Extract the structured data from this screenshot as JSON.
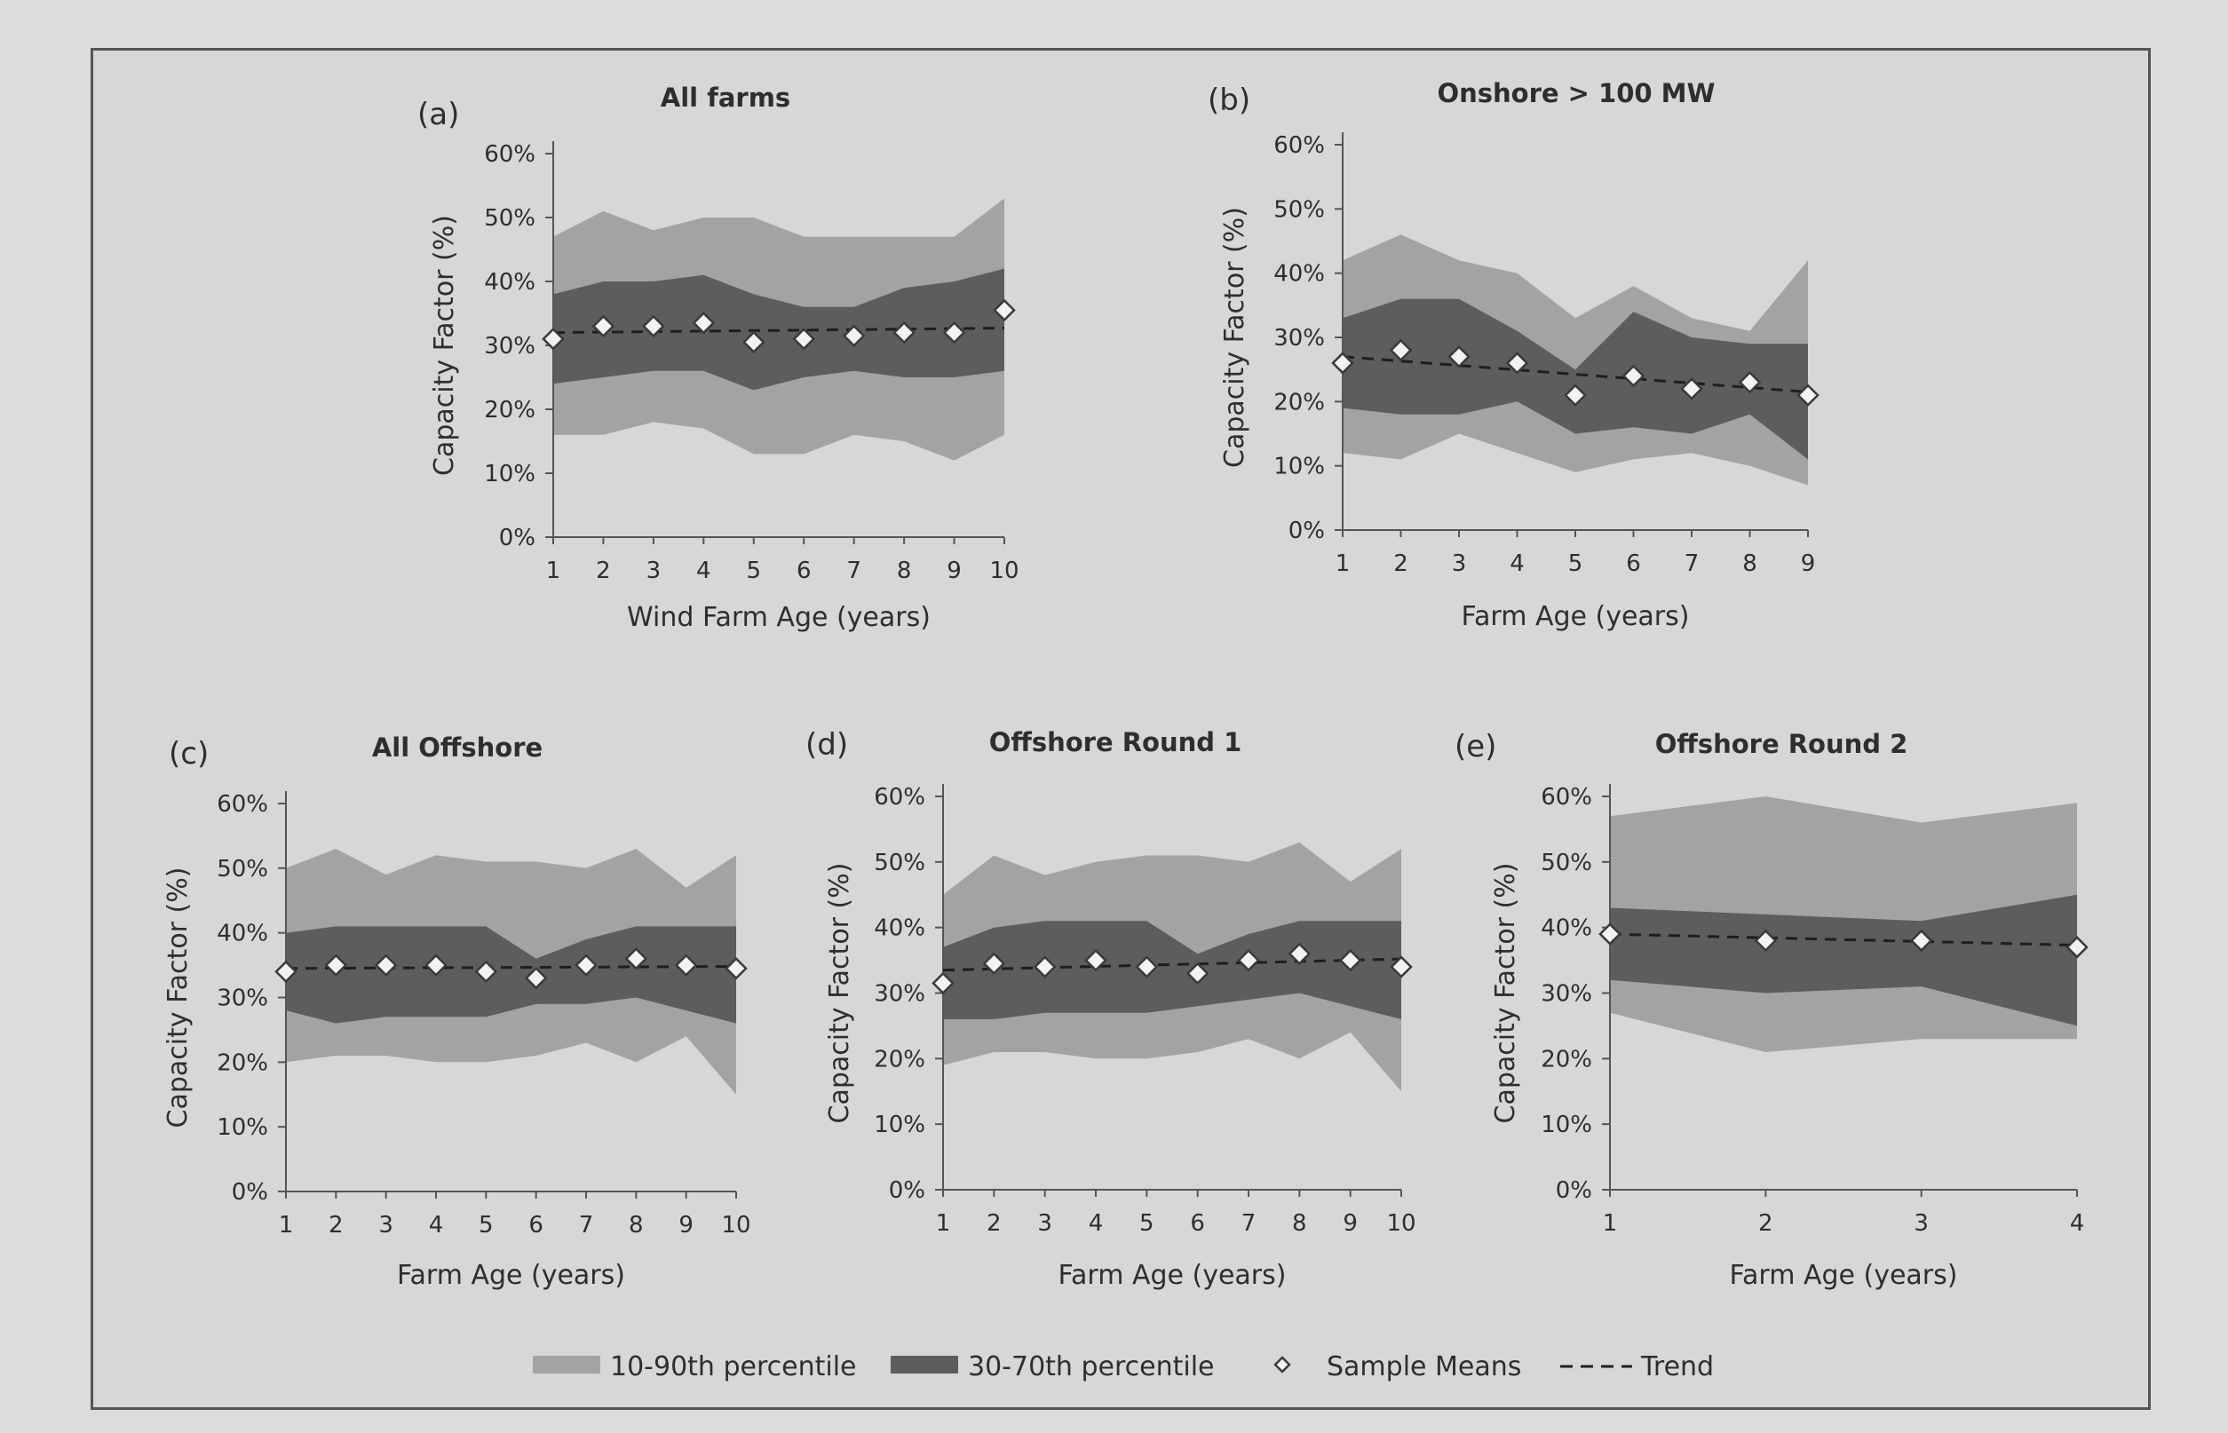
{
  "legend": {
    "outer": "10-90th percentile",
    "inner": "30-70th percentile",
    "means": "Sample Means",
    "trend": "Trend"
  },
  "colors": {
    "background": "#d7d7d5",
    "outer_band": "#a3a3a1",
    "inner_band": "#5d5d5b",
    "marker_fill": "#f2f2f2",
    "marker_stroke": "#3a3a3a",
    "trend": "#1e1e1e",
    "axis": "#555555"
  },
  "chart_data": [
    {
      "id": "a",
      "letter": "(a)",
      "type": "area",
      "title": "All farms",
      "xlabel": "Wind Farm Age (years)",
      "ylabel": "Capacity Factor (%)",
      "x": [
        1,
        2,
        3,
        4,
        5,
        6,
        7,
        8,
        9,
        10
      ],
      "yticks": [
        "0%",
        "10%",
        "20%",
        "30%",
        "40%",
        "50%",
        "60%"
      ],
      "ylim": [
        0,
        60
      ],
      "p10": [
        16,
        16,
        18,
        17,
        13,
        13,
        16,
        15,
        12,
        16
      ],
      "p30": [
        24,
        25,
        26,
        26,
        23,
        25,
        26,
        25,
        25,
        26
      ],
      "p70": [
        38,
        40,
        40,
        41,
        38,
        36,
        36,
        39,
        40,
        42
      ],
      "p90": [
        47,
        51,
        48,
        50,
        50,
        47,
        47,
        47,
        47,
        53
      ],
      "means": [
        31,
        33,
        33,
        33.5,
        30.5,
        31,
        31.5,
        32,
        32,
        35.5
      ],
      "trend": [
        32,
        32.7
      ]
    },
    {
      "id": "b",
      "letter": "(b)",
      "type": "area",
      "title": "Onshore > 100 MW",
      "xlabel": "Farm Age (years)",
      "ylabel": "Capacity Factor (%)",
      "x": [
        1,
        2,
        3,
        4,
        5,
        6,
        7,
        8,
        9
      ],
      "yticks": [
        "0%",
        "10%",
        "20%",
        "30%",
        "40%",
        "50%",
        "60%"
      ],
      "ylim": [
        0,
        60
      ],
      "p10": [
        12,
        11,
        15,
        12,
        9,
        11,
        12,
        10,
        7
      ],
      "p30": [
        19,
        18,
        18,
        20,
        15,
        16,
        15,
        18,
        11
      ],
      "p70": [
        33,
        36,
        36,
        31,
        25,
        34,
        30,
        29,
        29
      ],
      "p90": [
        42,
        46,
        42,
        40,
        33,
        38,
        33,
        31,
        42
      ],
      "means": [
        26,
        28,
        27,
        26,
        21,
        24,
        22,
        23,
        21
      ],
      "trend": [
        27,
        21.5
      ]
    },
    {
      "id": "c",
      "letter": "(c)",
      "type": "area",
      "title": "All Offshore",
      "xlabel": "Farm Age (years)",
      "ylabel": "Capacity Factor (%)",
      "x": [
        1,
        2,
        3,
        4,
        5,
        6,
        7,
        8,
        9,
        10
      ],
      "yticks": [
        "0%",
        "10%",
        "20%",
        "30%",
        "40%",
        "50%",
        "60%"
      ],
      "ylim": [
        0,
        60
      ],
      "p10": [
        20,
        21,
        21,
        20,
        20,
        21,
        23,
        20,
        24,
        15
      ],
      "p30": [
        28,
        26,
        27,
        27,
        27,
        29,
        29,
        30,
        28,
        26
      ],
      "p70": [
        40,
        41,
        41,
        41,
        41,
        36,
        39,
        41,
        41,
        41
      ],
      "p90": [
        50,
        53,
        49,
        52,
        51,
        51,
        50,
        53,
        47,
        52
      ],
      "means": [
        34,
        35,
        35,
        35,
        34,
        33,
        35,
        36,
        35,
        34.5
      ],
      "trend": [
        34.5,
        34.8
      ]
    },
    {
      "id": "d",
      "letter": "(d)",
      "type": "area",
      "title": "Offshore Round 1",
      "xlabel": "Farm Age (years)",
      "ylabel": "Capacity Factor (%)",
      "x": [
        1,
        2,
        3,
        4,
        5,
        6,
        7,
        8,
        9,
        10
      ],
      "yticks": [
        "0%",
        "10%",
        "20%",
        "30%",
        "40%",
        "50%",
        "60%"
      ],
      "ylim": [
        0,
        60
      ],
      "p10": [
        19,
        21,
        21,
        20,
        20,
        21,
        23,
        20,
        24,
        15
      ],
      "p30": [
        26,
        26,
        27,
        27,
        27,
        28,
        29,
        30,
        28,
        26
      ],
      "p70": [
        37,
        40,
        41,
        41,
        41,
        36,
        39,
        41,
        41,
        41
      ],
      "p90": [
        45,
        51,
        48,
        50,
        51,
        51,
        50,
        53,
        47,
        52
      ],
      "means": [
        31.5,
        34.5,
        34,
        35,
        34,
        33,
        35,
        36,
        35,
        34
      ],
      "trend": [
        33.5,
        35.2
      ]
    },
    {
      "id": "e",
      "letter": "(e)",
      "type": "area",
      "title": "Offshore Round 2",
      "xlabel": "Farm Age (years)",
      "ylabel": "Capacity Factor (%)",
      "x": [
        1,
        2,
        3,
        4
      ],
      "yticks": [
        "0%",
        "10%",
        "20%",
        "30%",
        "40%",
        "50%",
        "60%"
      ],
      "ylim": [
        0,
        60
      ],
      "p10": [
        27,
        21,
        23,
        23
      ],
      "p30": [
        32,
        30,
        31,
        25
      ],
      "p70": [
        43,
        42,
        41,
        45
      ],
      "p90": [
        57,
        60,
        56,
        59
      ],
      "means": [
        39,
        38,
        38,
        37
      ],
      "trend": [
        39,
        37.3
      ]
    }
  ]
}
